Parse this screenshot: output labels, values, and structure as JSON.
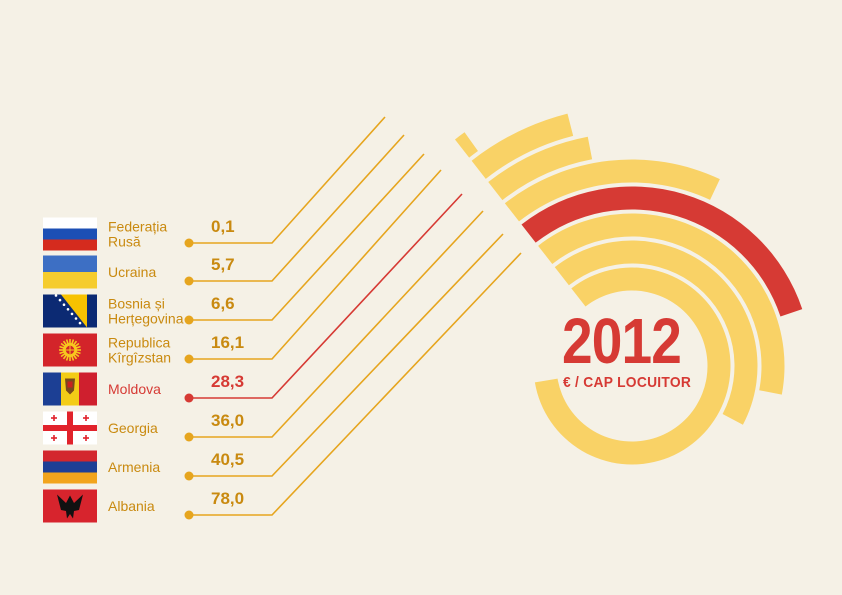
{
  "chart_data": {
    "type": "radial-bar",
    "title": "2012",
    "subtitle": "€ / CAP LOCUITOR",
    "categories": [
      "Federația Rusă",
      "Ucraina",
      "Bosnia și Herțegovina",
      "Republica Kîrgîzstan",
      "Moldova",
      "Georgia",
      "Armenia",
      "Albania"
    ],
    "label_lines": [
      [
        "Federația",
        "Rusă"
      ],
      [
        "Ucraina"
      ],
      [
        "Bosnia și",
        "Herțegovina"
      ],
      [
        "Republica",
        "Kîrgîzstan"
      ],
      [
        "Moldova"
      ],
      [
        "Georgia"
      ],
      [
        "Armenia"
      ],
      [
        "Albania"
      ]
    ],
    "values": [
      "0,1",
      "5,7",
      "6,6",
      "16,1",
      "28,3",
      "36,0",
      "40,5",
      "78,0"
    ],
    "numeric_values": [
      0.1,
      5.7,
      6.6,
      16.1,
      28.3,
      36.0,
      40.5,
      78.0
    ],
    "highlight": "Moldova",
    "flags": [
      "russia-flag",
      "ukraine-flag",
      "bosnia-herzegovina-flag",
      "kyrgyzstan-flag",
      "moldova-flag",
      "georgia-flag",
      "armenia-flag",
      "albania-flag"
    ]
  },
  "colors": {
    "background": "#f5f1e6",
    "bar": "#f9d266",
    "highlight": "#d63a34",
    "leader": "#e6a51e",
    "label": "#c98a10"
  }
}
